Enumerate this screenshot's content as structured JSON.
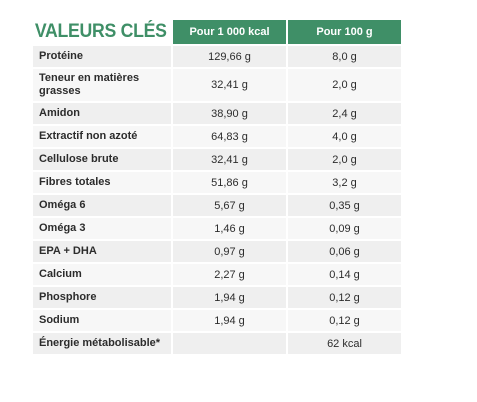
{
  "table": {
    "title": "VALEURS CLÉS",
    "headers": [
      "Pour 1 000 kcal",
      "Pour 100 g"
    ],
    "rows": [
      {
        "label": "Protéine",
        "per_1000kcal": "129,66 g",
        "per_100g": "8,0 g"
      },
      {
        "label": "Teneur en matières grasses",
        "per_1000kcal": "32,41 g",
        "per_100g": "2,0 g"
      },
      {
        "label": "Amidon",
        "per_1000kcal": "38,90 g",
        "per_100g": "2,4 g"
      },
      {
        "label": "Extractif non azoté",
        "per_1000kcal": "64,83 g",
        "per_100g": "4,0 g"
      },
      {
        "label": "Cellulose brute",
        "per_1000kcal": "32,41 g",
        "per_100g": "2,0 g"
      },
      {
        "label": "Fibres totales",
        "per_1000kcal": "51,86 g",
        "per_100g": "3,2 g"
      },
      {
        "label": "Oméga 6",
        "per_1000kcal": "5,67 g",
        "per_100g": "0,35 g"
      },
      {
        "label": "Oméga 3",
        "per_1000kcal": "1,46 g",
        "per_100g": "0,09 g"
      },
      {
        "label": "EPA + DHA",
        "per_1000kcal": "0,97 g",
        "per_100g": "0,06 g"
      },
      {
        "label": "Calcium",
        "per_1000kcal": "2,27 g",
        "per_100g": "0,14 g"
      },
      {
        "label": "Phosphore",
        "per_1000kcal": "1,94 g",
        "per_100g": "0,12 g"
      },
      {
        "label": "Sodium",
        "per_1000kcal": "1,94 g",
        "per_100g": "0,12 g"
      },
      {
        "label": "Énergie métabolisable*",
        "per_1000kcal": "",
        "per_100g": "62 kcal"
      }
    ]
  },
  "colors": {
    "accent_green": "#3f8f67",
    "row_shade_a": "#efefef",
    "row_shade_b": "#f7f7f7",
    "text": "#2c2c2c"
  }
}
